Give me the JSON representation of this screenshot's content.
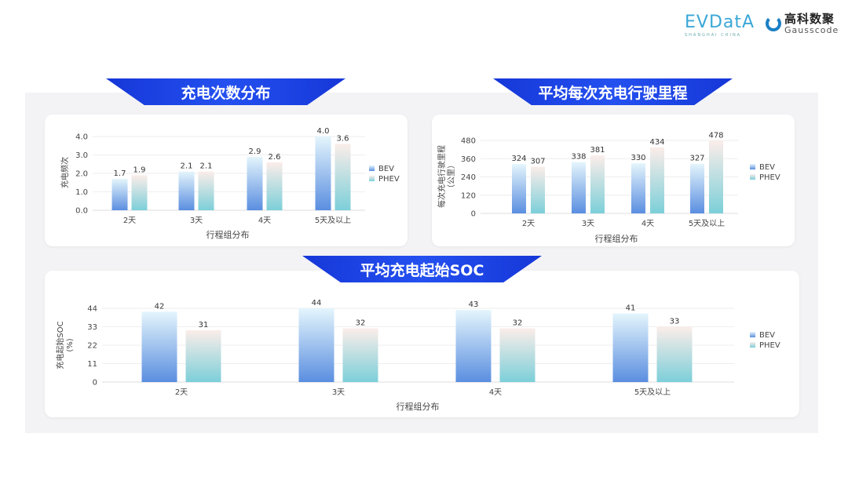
{
  "logos": {
    "evdata": "EVDatA",
    "evdata_sub": "SHANGHAI CHINA",
    "gauss_cn": "高科数聚",
    "gauss_en": "Gausscode"
  },
  "colors": {
    "banner": "#1a3fe0",
    "bev_top": "#e4f5fc",
    "bev_bottom": "#5a8ee0",
    "phev_top": "#fbede9",
    "phev_bottom": "#7ccfd9"
  },
  "chart_data": [
    {
      "type": "bar",
      "title": "充电次数分布",
      "xlabel": "行程组分布",
      "ylabel": "充电频次",
      "categories": [
        "2天",
        "3天",
        "4天",
        "5天及以上"
      ],
      "yticks": [
        "0.0",
        "1.0",
        "2.0",
        "3.0",
        "4.0"
      ],
      "ylim": [
        0,
        4
      ],
      "grid": true,
      "legend": "right",
      "series": [
        {
          "name": "BEV",
          "values": [
            1.7,
            2.1,
            2.9,
            4.0
          ],
          "labels": [
            "1.7",
            "2.1",
            "2.9",
            "4.0"
          ]
        },
        {
          "name": "PHEV",
          "values": [
            1.9,
            2.1,
            2.6,
            3.6
          ],
          "labels": [
            "1.9",
            "2.1",
            "2.6",
            "3.6"
          ]
        }
      ]
    },
    {
      "type": "bar",
      "title": "平均每次充电行驶里程",
      "xlabel": "行程组分布",
      "ylabel": "每次充电行驶里程",
      "ylabel2": "（公里）",
      "categories": [
        "2天",
        "3天",
        "4天",
        "5天及以上"
      ],
      "yticks": [
        "0",
        "120",
        "240",
        "360",
        "480"
      ],
      "ylim": [
        0,
        480
      ],
      "grid": true,
      "legend": "right",
      "series": [
        {
          "name": "BEV",
          "values": [
            324,
            338,
            330,
            327
          ],
          "labels": [
            "324",
            "338",
            "330",
            "327"
          ]
        },
        {
          "name": "PHEV",
          "values": [
            307,
            381,
            434,
            478
          ],
          "labels": [
            "307",
            "381",
            "434",
            "478"
          ]
        }
      ]
    },
    {
      "type": "bar",
      "title": "平均充电起始SOC",
      "xlabel": "行程组分布",
      "ylabel": "充电起始SOC",
      "ylabel2": "(%)",
      "categories": [
        "2天",
        "3天",
        "4天",
        "5天及以上"
      ],
      "yticks": [
        "0",
        "11",
        "22",
        "33",
        "44"
      ],
      "ylim": [
        0,
        44
      ],
      "grid": true,
      "legend": "right",
      "series": [
        {
          "name": "BEV",
          "values": [
            42,
            44,
            43,
            41
          ],
          "labels": [
            "42",
            "44",
            "43",
            "41"
          ]
        },
        {
          "name": "PHEV",
          "values": [
            31,
            32,
            32,
            33
          ],
          "labels": [
            "31",
            "32",
            "32",
            "33"
          ]
        }
      ]
    }
  ]
}
